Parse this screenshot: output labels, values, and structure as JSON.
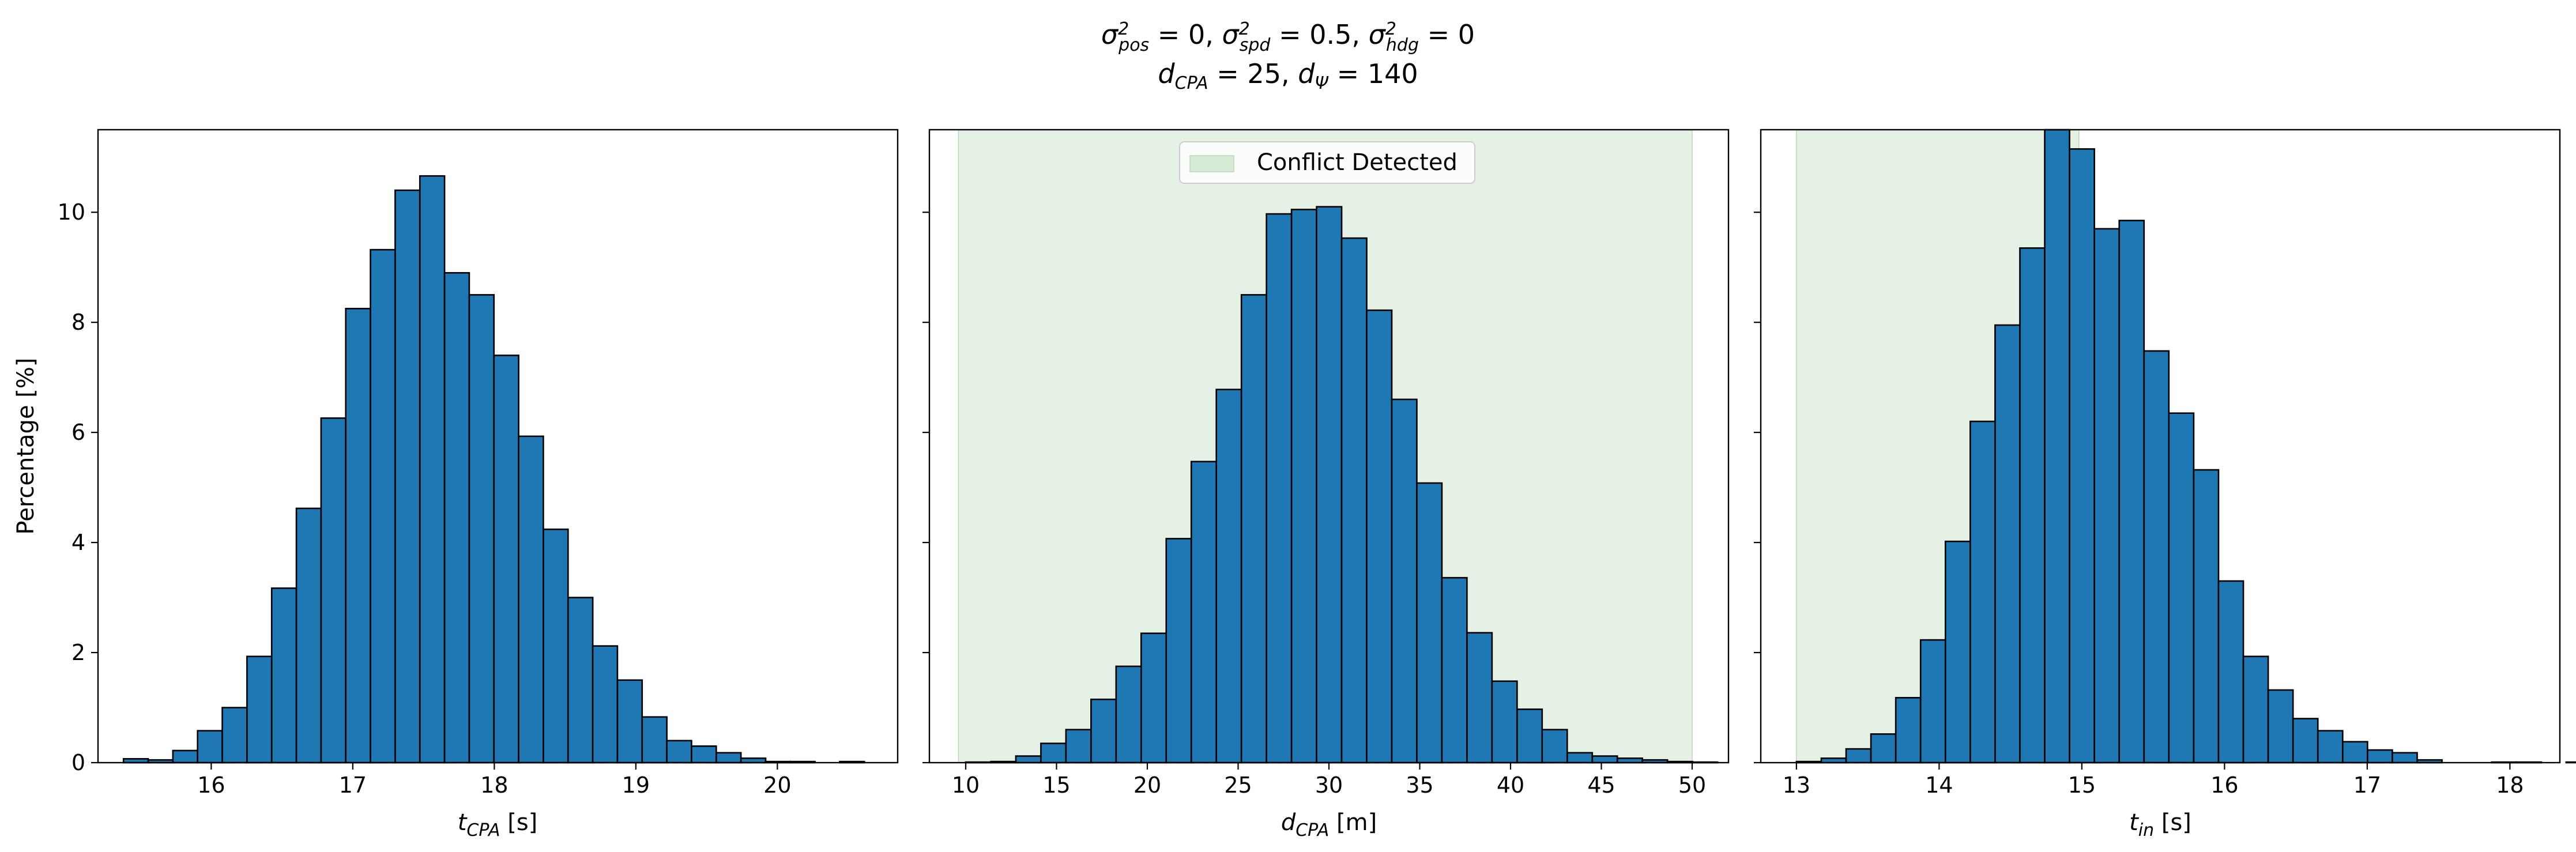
{
  "figure": {
    "title_line1": "σ²pos = 0, σ²spd = 0.5, σ²hdg = 0",
    "title_line2": "dCPA = 25, dΨ = 140"
  },
  "chart_data": [
    {
      "type": "bar",
      "title": "",
      "xlabel": "tCPA [s]",
      "ylabel": "Percentage [%]",
      "xlim": [
        15.2,
        20.85
      ],
      "ylim": [
        0,
        11.5
      ],
      "xticks": [
        16,
        17,
        18,
        19,
        20
      ],
      "yticks": [
        0,
        2,
        4,
        6,
        8,
        10
      ],
      "bin_start": 15.38,
      "bin_width": 0.1745,
      "values": [
        0.07,
        0.05,
        0.22,
        0.58,
        1.0,
        1.93,
        3.17,
        4.62,
        6.26,
        8.25,
        9.32,
        10.4,
        10.66,
        8.9,
        8.5,
        7.4,
        5.93,
        4.24,
        3.0,
        2.12,
        1.5,
        0.83,
        0.4,
        0.3,
        0.18,
        0.08,
        0.02,
        0.02,
        0.0,
        0.02
      ],
      "bar_color": "#1f77b4",
      "edge_color": "#000000",
      "shade": null
    },
    {
      "type": "bar",
      "title": "",
      "xlabel": "dCPA [m]",
      "ylabel": "",
      "xlim": [
        8.0,
        52.0
      ],
      "ylim": [
        0,
        11.5
      ],
      "xticks": [
        10,
        15,
        20,
        25,
        30,
        35,
        40,
        45,
        50
      ],
      "yticks": [
        0,
        2,
        4,
        6,
        8,
        10
      ],
      "bin_start": 10.0,
      "bin_width": 1.38,
      "values": [
        0.01,
        0.02,
        0.12,
        0.35,
        0.6,
        1.15,
        1.75,
        2.35,
        4.07,
        5.47,
        6.78,
        8.5,
        9.97,
        10.05,
        10.1,
        9.53,
        8.22,
        6.6,
        5.08,
        3.36,
        2.36,
        1.48,
        0.97,
        0.6,
        0.18,
        0.12,
        0.08,
        0.05,
        0.02,
        0.01
      ],
      "bar_color": "#1f77b4",
      "edge_color": "#000000",
      "shade": {
        "from": 9.6,
        "to": 50.0,
        "color": "#d5e9d4",
        "label": "Conflict Detected",
        "legend": "upper center"
      }
    },
    {
      "type": "bar",
      "title": "",
      "xlabel": "tin [s]",
      "ylabel": "",
      "xlim": [
        12.75,
        18.35
      ],
      "ylim": [
        0,
        11.5
      ],
      "xticks": [
        13,
        14,
        15,
        16,
        17,
        18
      ],
      "yticks": [
        0,
        2,
        4,
        6,
        8,
        10
      ],
      "bin_start": 13.0,
      "bin_width": 0.174,
      "values": [
        0.02,
        0.08,
        0.25,
        0.52,
        1.18,
        2.23,
        4.02,
        6.2,
        7.95,
        9.35,
        11.55,
        11.15,
        9.7,
        9.85,
        7.48,
        6.35,
        5.32,
        3.3,
        1.93,
        1.32,
        0.8,
        0.58,
        0.38,
        0.23,
        0.18,
        0.05,
        0.0,
        0.0,
        0.01,
        0.01,
        0.0,
        0.01
      ],
      "bar_color": "#1f77b4",
      "edge_color": "#000000",
      "shade": {
        "from": 13.0,
        "to": 14.98,
        "color": "#d5e9d4",
        "label": "",
        "legend": ""
      }
    }
  ]
}
